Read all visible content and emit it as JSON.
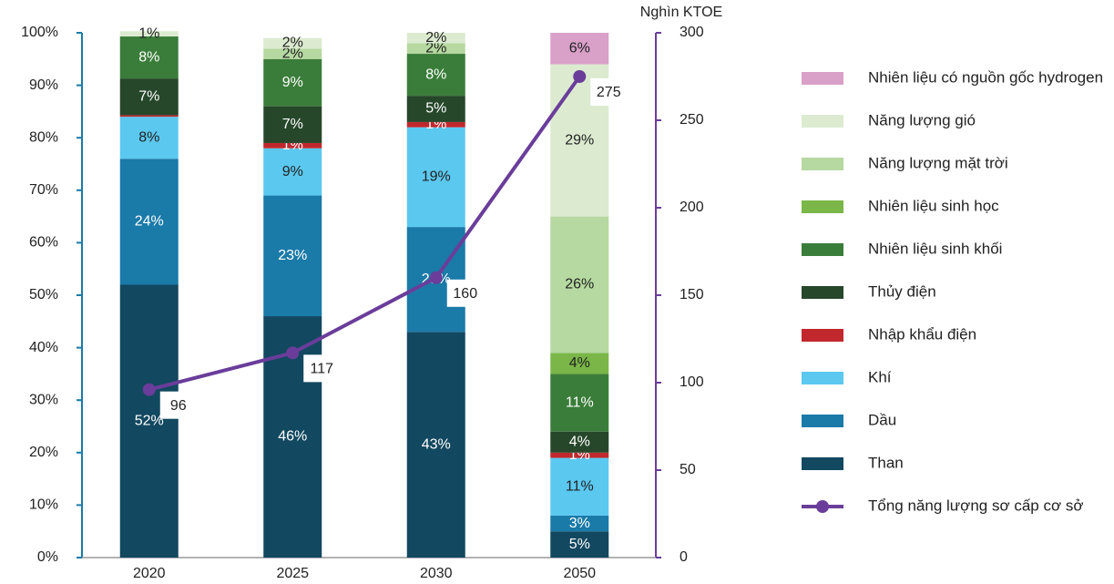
{
  "chart_data": {
    "type": "bar",
    "stacked": true,
    "categories": [
      "2020",
      "2025",
      "2030",
      "2050"
    ],
    "ylim": [
      0,
      100
    ],
    "yticks": [
      {
        "value": 0,
        "label": "0%"
      },
      {
        "value": 10,
        "label": "10%"
      },
      {
        "value": 20,
        "label": "20%"
      },
      {
        "value": 30,
        "label": "30%"
      },
      {
        "value": 40,
        "label": "40%"
      },
      {
        "value": 50,
        "label": "50%"
      },
      {
        "value": 60,
        "label": "60%"
      },
      {
        "value": 70,
        "label": "70%"
      },
      {
        "value": 80,
        "label": "80%"
      },
      {
        "value": 90,
        "label": "90%"
      },
      {
        "value": 100,
        "label": "100%"
      }
    ],
    "y2label": "Nghìn KTOE",
    "y2lim": [
      0,
      300
    ],
    "y2ticks": [
      0,
      50,
      100,
      150,
      200,
      250,
      300
    ],
    "legend": "right",
    "series": [
      {
        "name": "Than",
        "color": "#124860",
        "values": [
          52,
          46,
          43,
          5
        ],
        "value_labels": [
          "52%",
          "46%",
          "43%",
          "5%"
        ]
      },
      {
        "name": "Dầu",
        "color": "#1a7aa8",
        "values": [
          24,
          23,
          20,
          3
        ],
        "value_labels": [
          "24%",
          "23%",
          "20%",
          "3%"
        ]
      },
      {
        "name": "Khí",
        "color": "#5bc8f0",
        "values": [
          8,
          9,
          19,
          11
        ],
        "value_labels": [
          "8%",
          "9%",
          "19%",
          "11%"
        ]
      },
      {
        "name": "Nhập khẩu điện",
        "color": "#c0282d",
        "values": [
          0.3,
          1,
          1,
          1
        ],
        "value_labels": [
          null,
          "1%",
          "1%",
          "1%"
        ]
      },
      {
        "name": "Thủy điện",
        "color": "#26472a",
        "values": [
          7,
          7,
          5,
          4
        ],
        "value_labels": [
          "7%",
          "7%",
          "5%",
          "4%"
        ]
      },
      {
        "name": "Nhiên liệu sinh khối",
        "color": "#3a7d3a",
        "values": [
          8,
          9,
          8,
          11
        ],
        "value_labels": [
          "8%",
          "9%",
          "8%",
          "11%"
        ]
      },
      {
        "name": "Nhiên liệu sinh học",
        "color": "#7ab648",
        "values": [
          null,
          null,
          null,
          4
        ],
        "value_labels": [
          null,
          null,
          null,
          "4%"
        ]
      },
      {
        "name": "Năng lượng mặt trời",
        "color": "#b5d9a0",
        "values": [
          null,
          2,
          2,
          26
        ],
        "value_labels": [
          null,
          "2%",
          "2%",
          "26%"
        ]
      },
      {
        "name": "Năng lượng gió",
        "color": "#dcebd0",
        "values": [
          1,
          2,
          2,
          29
        ],
        "value_labels": [
          "1%",
          "2%",
          "2%",
          "29%"
        ]
      },
      {
        "name": "Nhiên liệu có nguồn gốc hydrogen",
        "color": "#d9a0c8",
        "values": [
          null,
          null,
          null,
          6
        ],
        "value_labels": [
          null,
          null,
          null,
          "6%"
        ]
      },
      {
        "name": "Tổng năng lượng sơ cấp cơ sở",
        "type": "line",
        "axis": "y2",
        "color": "#6a3d9a",
        "values": [
          96,
          117,
          160,
          275
        ]
      }
    ]
  }
}
